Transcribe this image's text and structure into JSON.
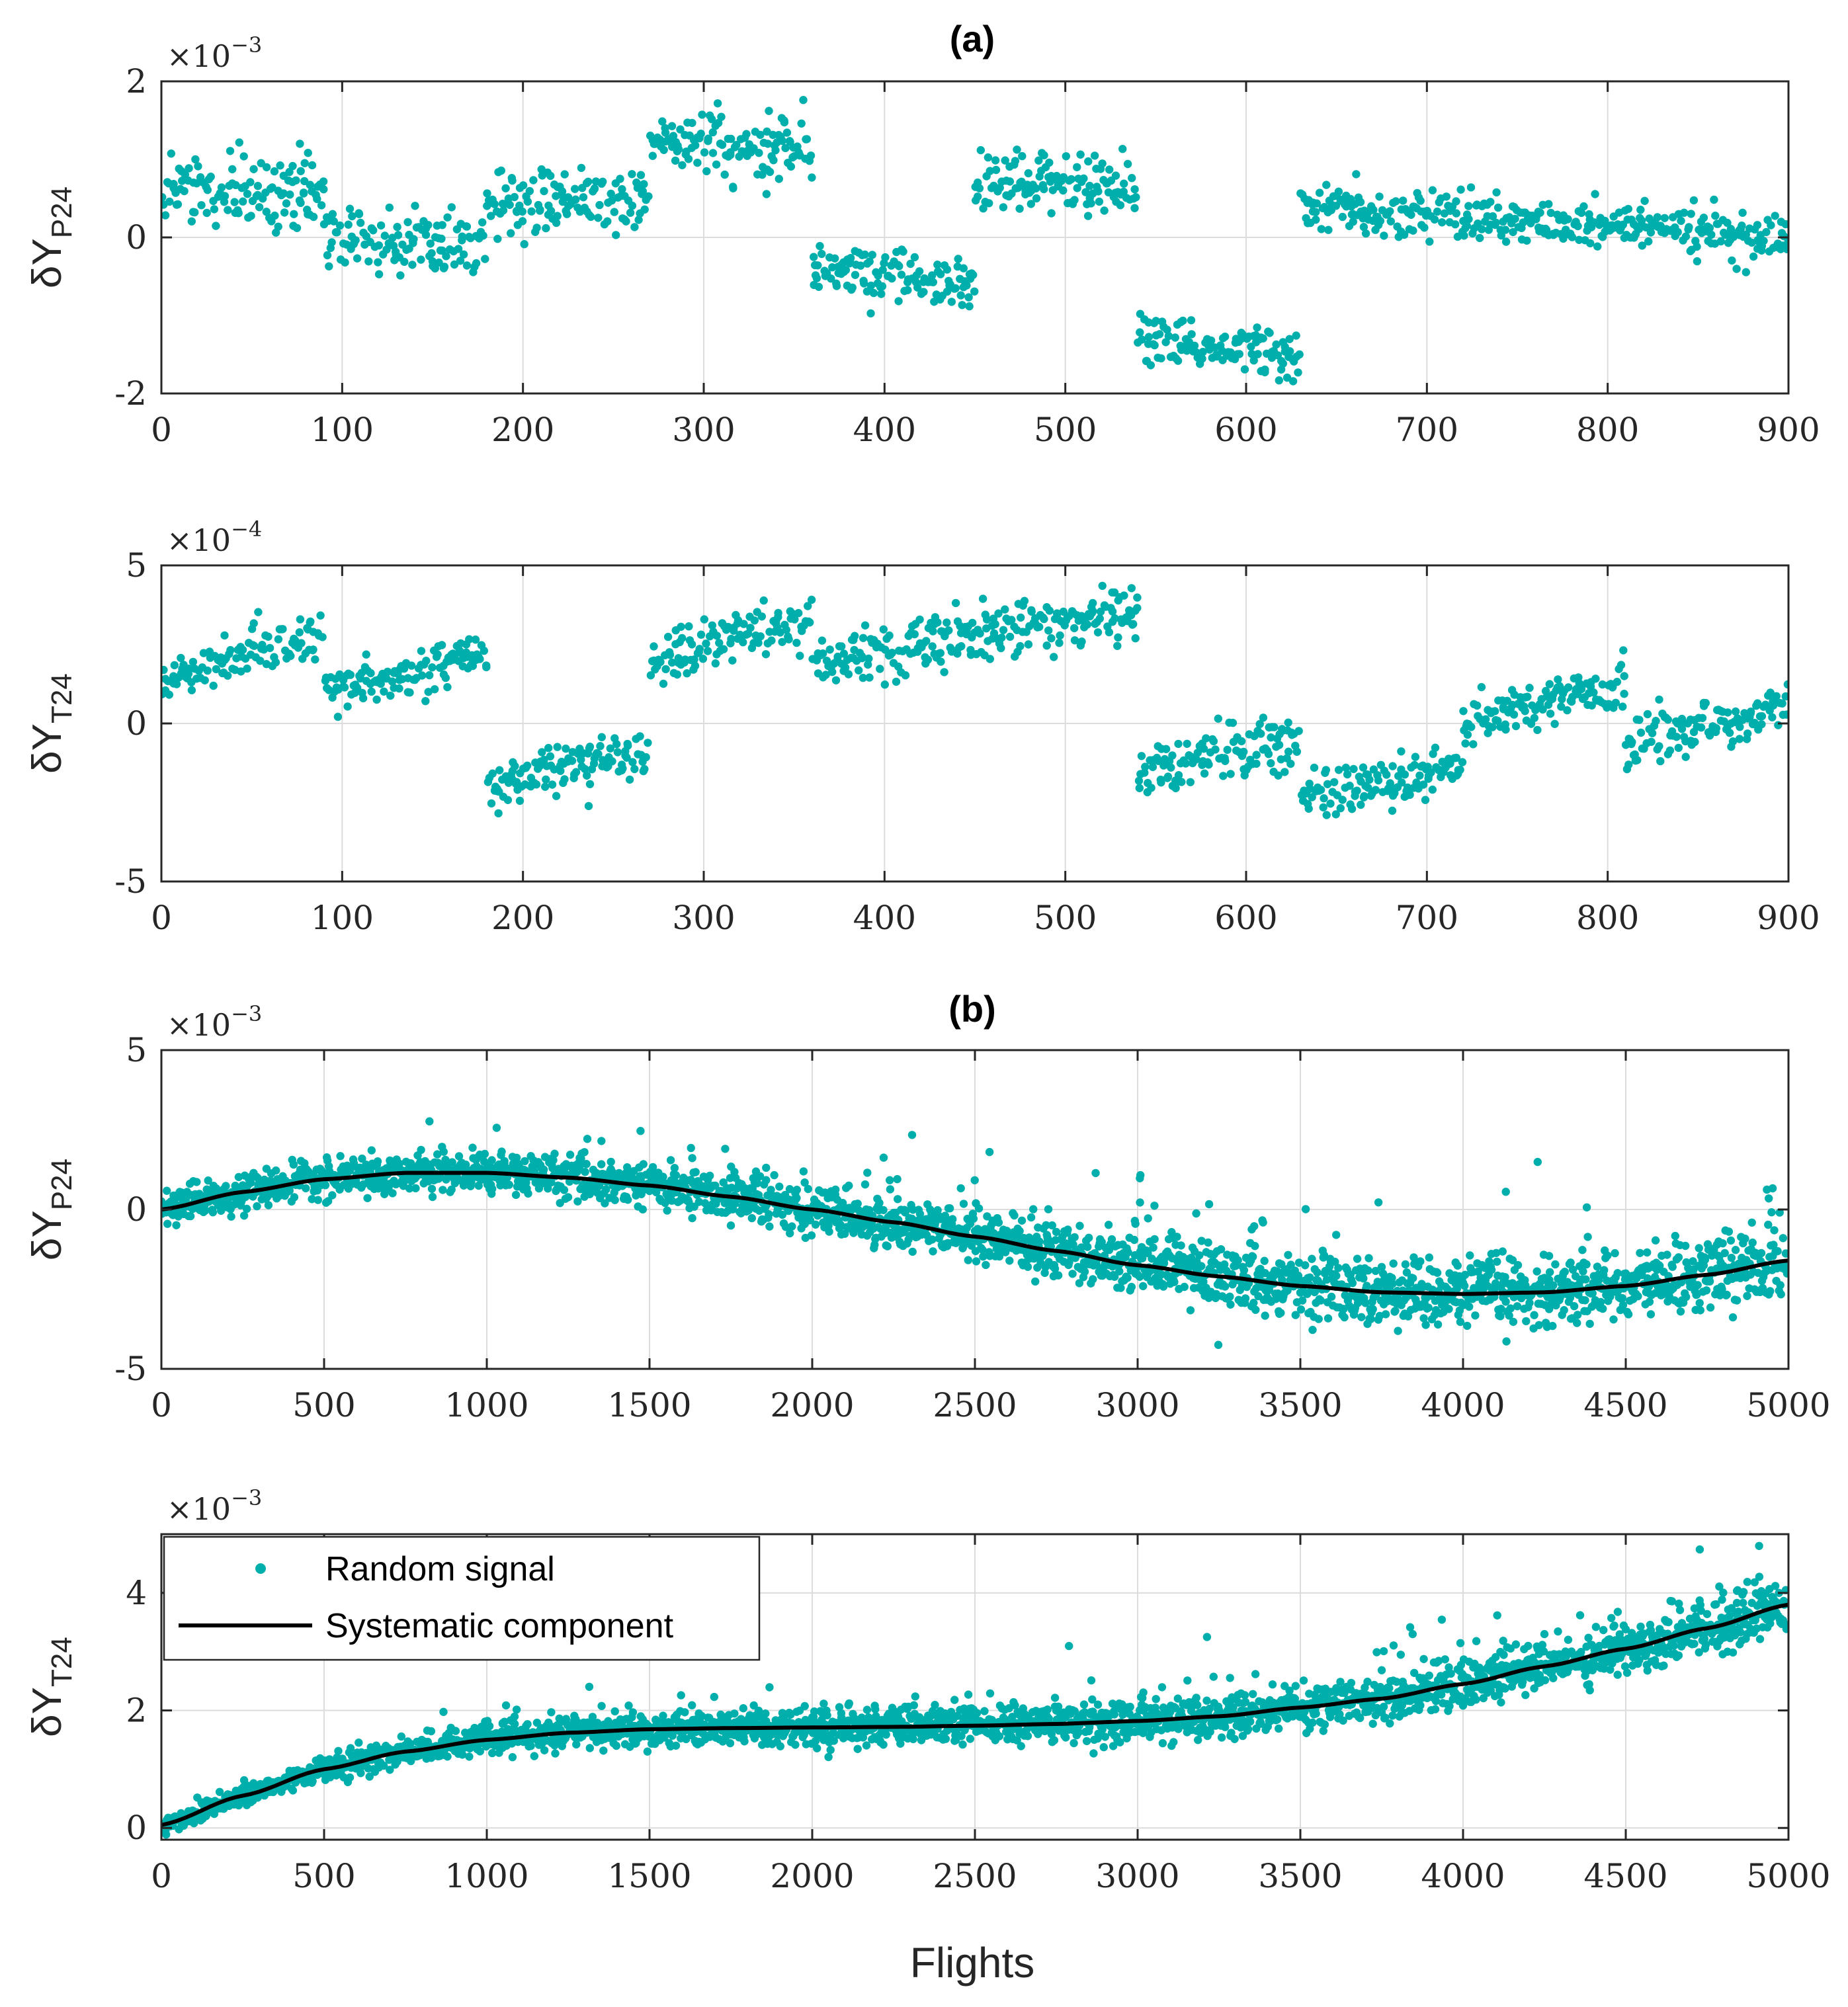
{
  "colors": {
    "points": "#00AFAB",
    "line": "#000000",
    "grid": "#DCDCDC",
    "axis": "#262626"
  },
  "figure": {
    "title_a": "(a)",
    "title_b": "(b)",
    "xlabel": "Flights"
  },
  "legend": {
    "random_label": "Random signal",
    "systematic_label": "Systematic component"
  },
  "chart_data": [
    {
      "id": "a-p24",
      "type": "scatter",
      "panel": "(a)",
      "ylabel_main": "δY",
      "ylabel_sub": "P24",
      "exponent_base": "×10",
      "exponent_power": "−3",
      "xlim": [
        0,
        900
      ],
      "ylim": [
        -2,
        2
      ],
      "xticks": [
        0,
        100,
        200,
        300,
        400,
        500,
        600,
        700,
        800,
        900
      ],
      "yticks": [
        -2,
        0,
        2
      ],
      "grid": true,
      "segments": [
        {
          "x_start": 0,
          "x_end": 90,
          "start": 0.6,
          "end": 0.6,
          "spread": 0.25
        },
        {
          "x_start": 90,
          "x_end": 180,
          "start": 0.05,
          "end": -0.15,
          "spread": 0.22
        },
        {
          "x_start": 180,
          "x_end": 270,
          "start": 0.4,
          "end": 0.5,
          "spread": 0.22
        },
        {
          "x_start": 270,
          "x_end": 360,
          "start": 1.25,
          "end": 1.1,
          "spread": 0.22
        },
        {
          "x_start": 360,
          "x_end": 450,
          "start": -0.4,
          "end": -0.6,
          "spread": 0.16
        },
        {
          "x_start": 450,
          "x_end": 540,
          "start": 0.7,
          "end": 0.6,
          "spread": 0.2
        },
        {
          "x_start": 540,
          "x_end": 630,
          "start": -1.3,
          "end": -1.55,
          "spread": 0.16
        },
        {
          "x_start": 630,
          "x_end": 900,
          "start": 0.4,
          "end": 0.0,
          "spread": 0.16
        }
      ]
    },
    {
      "id": "a-t24",
      "type": "scatter",
      "panel": "(a)",
      "ylabel_main": "δY",
      "ylabel_sub": "T24",
      "exponent_base": "×10",
      "exponent_power": "−4",
      "xlim": [
        0,
        900
      ],
      "ylim": [
        -5,
        5
      ],
      "xticks": [
        0,
        100,
        200,
        300,
        400,
        500,
        600,
        700,
        800,
        900
      ],
      "yticks": [
        -5,
        0,
        5
      ],
      "grid": true,
      "segments": [
        {
          "x_start": 0,
          "x_end": 90,
          "start": 1.3,
          "end": 2.8,
          "spread": 0.35
        },
        {
          "x_start": 90,
          "x_end": 180,
          "start": 1.0,
          "end": 2.2,
          "spread": 0.35
        },
        {
          "x_start": 180,
          "x_end": 270,
          "start": -2.0,
          "end": -0.8,
          "spread": 0.4
        },
        {
          "x_start": 270,
          "x_end": 360,
          "start": 1.8,
          "end": 3.5,
          "spread": 0.4
        },
        {
          "x_start": 360,
          "x_end": 540,
          "start": 2.0,
          "end": 3.6,
          "spread": 0.45
        },
        {
          "x_start": 540,
          "x_end": 630,
          "start": -1.5,
          "end": -0.4,
          "spread": 0.4
        },
        {
          "x_start": 630,
          "x_end": 720,
          "start": -2.4,
          "end": -1.4,
          "spread": 0.4
        },
        {
          "x_start": 720,
          "x_end": 810,
          "start": 0.0,
          "end": 1.3,
          "spread": 0.35
        },
        {
          "x_start": 810,
          "x_end": 900,
          "start": -0.8,
          "end": 0.6,
          "spread": 0.4
        }
      ]
    },
    {
      "id": "b-p24",
      "type": "scatter",
      "panel": "(b)",
      "ylabel_main": "δY",
      "ylabel_sub": "P24",
      "exponent_base": "×10",
      "exponent_power": "−3",
      "xlim": [
        0,
        5000
      ],
      "ylim": [
        -5,
        5
      ],
      "xticks": [
        0,
        500,
        1000,
        1500,
        2000,
        2500,
        3000,
        3500,
        4000,
        4500,
        5000
      ],
      "yticks": [
        -5,
        0,
        5
      ],
      "grid": true,
      "systematic_curve": {
        "x": [
          0,
          250,
          500,
          750,
          1000,
          1250,
          1500,
          1750,
          2000,
          2250,
          2500,
          2750,
          3000,
          3250,
          3500,
          3750,
          4000,
          4250,
          4500,
          4750,
          5000
        ],
        "y": [
          0.0,
          0.55,
          0.95,
          1.15,
          1.15,
          1.0,
          0.75,
          0.4,
          0.0,
          -0.4,
          -0.85,
          -1.3,
          -1.75,
          -2.1,
          -2.4,
          -2.6,
          -2.65,
          -2.6,
          -2.4,
          -2.05,
          -1.6
        ]
      },
      "random_signal": {
        "n_points": 2400,
        "spread": 0.4,
        "outliers": 120,
        "outlier_spread": 1.8
      }
    },
    {
      "id": "b-t24",
      "type": "scatter",
      "panel": "(b)",
      "ylabel_main": "δY",
      "ylabel_sub": "T24",
      "exponent_base": "×10",
      "exponent_power": "−3",
      "xlim": [
        0,
        5000
      ],
      "ylim": [
        -0.2,
        5
      ],
      "xticks": [
        0,
        500,
        1000,
        1500,
        2000,
        2500,
        3000,
        3500,
        4000,
        4500,
        5000
      ],
      "yticks": [
        0,
        2,
        4
      ],
      "grid": true,
      "legend": true,
      "systematic_curve": {
        "x": [
          0,
          250,
          500,
          750,
          1000,
          1250,
          1500,
          1750,
          2000,
          2250,
          2500,
          2750,
          3000,
          3250,
          3500,
          3750,
          4000,
          4250,
          4500,
          4750,
          5000
        ],
        "y": [
          0.05,
          0.55,
          1.0,
          1.3,
          1.5,
          1.62,
          1.68,
          1.7,
          1.71,
          1.72,
          1.74,
          1.77,
          1.82,
          1.9,
          2.05,
          2.2,
          2.45,
          2.75,
          3.05,
          3.4,
          3.8
        ]
      },
      "random_signal": {
        "n_points": 2400,
        "spread": 0.16,
        "outliers": 120,
        "outlier_spread": 0.6
      }
    }
  ]
}
